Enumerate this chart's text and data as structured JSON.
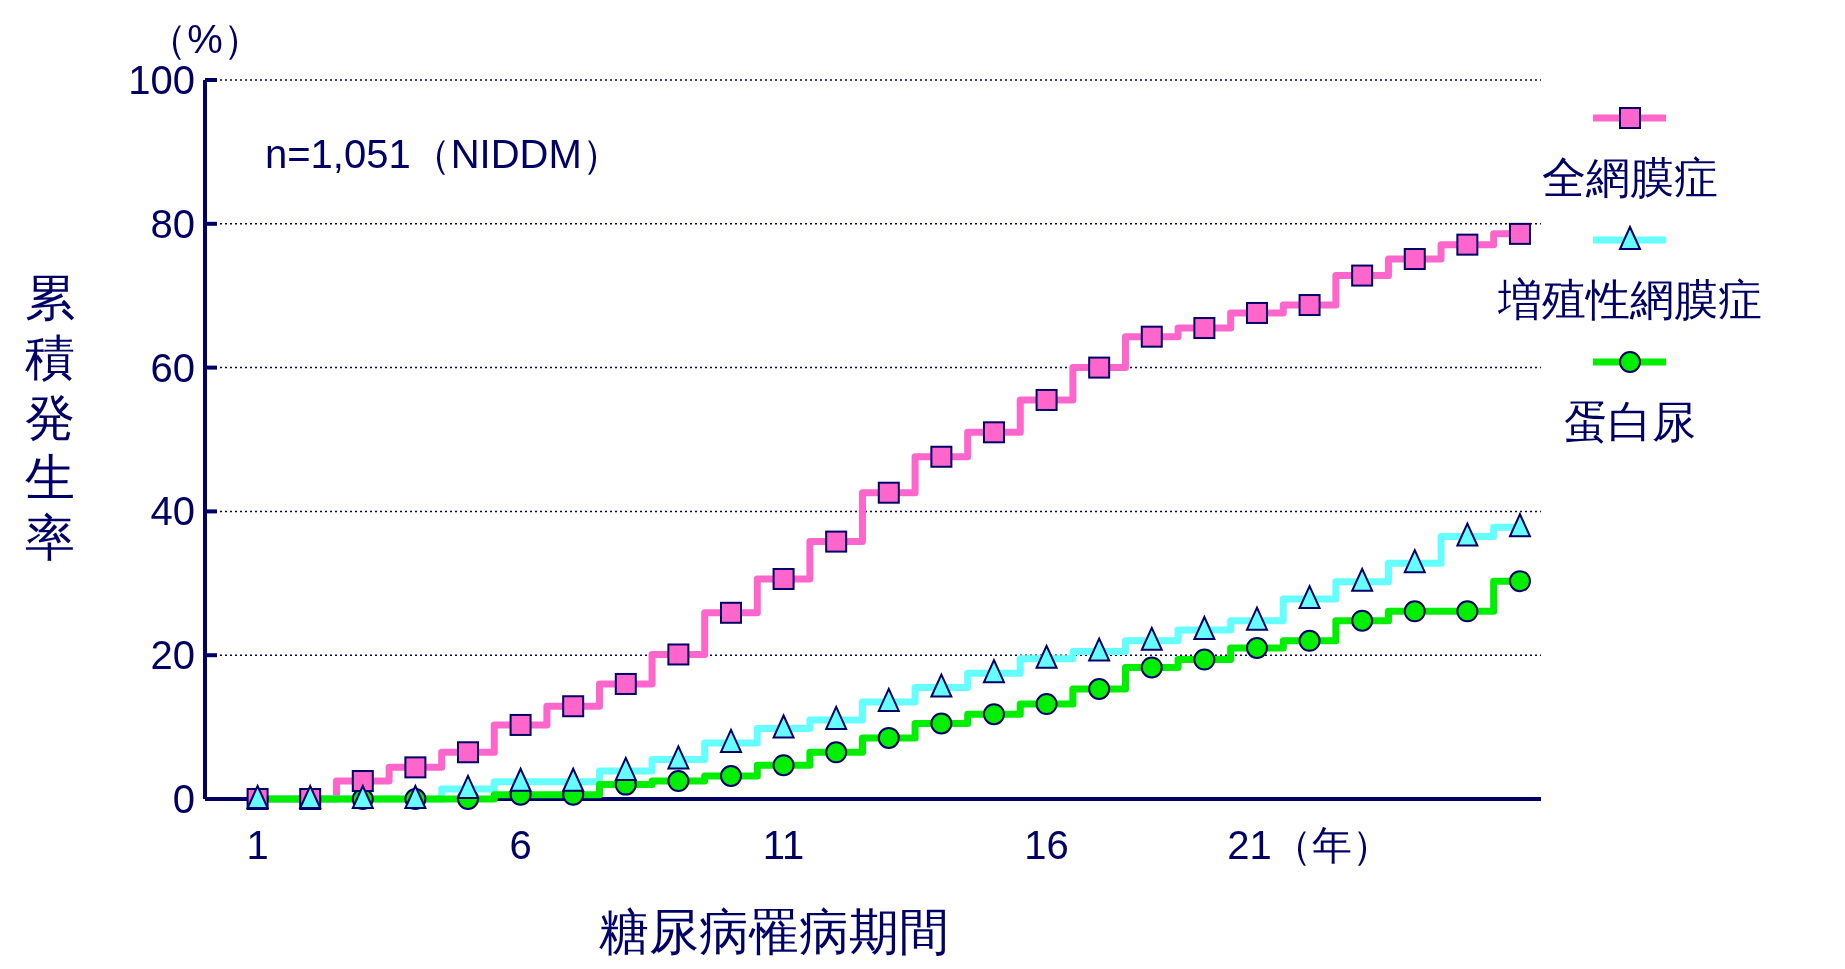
{
  "chart_data": {
    "type": "step",
    "xlabel": "糖尿病罹病期間",
    "ylabel": "累積発生率",
    "annotations": [
      "n=1,051（NIDDM）",
      "（%）"
    ],
    "x": [
      1,
      2,
      3,
      4,
      5,
      6,
      7,
      8,
      9,
      10,
      11,
      12,
      13,
      14,
      15,
      16,
      17,
      18,
      19,
      20,
      21,
      22,
      23,
      24,
      25
    ],
    "xlim": [
      0,
      25.4
    ],
    "xticks": [
      1,
      6,
      11,
      16,
      {
        "value": 21,
        "label": "21（年）"
      }
    ],
    "ylim": [
      0,
      100
    ],
    "yticks": [
      0,
      20,
      40,
      60,
      80,
      100
    ],
    "grid": "y",
    "legend": "top right",
    "line_style": "solid",
    "series": [
      {
        "name": "全網膜症",
        "color": "#ff66cc",
        "marker": "square",
        "values": [
          0,
          0,
          2.5,
          4.4,
          6.5,
          10.3,
          12.9,
          16,
          20.1,
          25.9,
          30.6,
          35.8,
          42.6,
          47.6,
          51,
          55.5,
          60,
          64.3,
          65.5,
          67.6,
          68.7,
          72.8,
          75.1,
          77.1,
          78.6
        ]
      },
      {
        "name": "増殖性網膜症",
        "color": "#66ffff",
        "marker": "triangle",
        "values": [
          0,
          0,
          0,
          0,
          1.4,
          2.4,
          2.4,
          3.9,
          5.5,
          7.8,
          9.8,
          11,
          13.5,
          15.5,
          17.5,
          19.5,
          20.5,
          22,
          23.5,
          24.8,
          27.8,
          30.2,
          32.8,
          36.5,
          37.8
        ]
      },
      {
        "name": "蛋白尿",
        "color": "#00ee00",
        "marker": "circle",
        "values": [
          0,
          0,
          0,
          0,
          0,
          0.6,
          0.6,
          2,
          2.5,
          3.2,
          4.7,
          6.5,
          8.5,
          10.5,
          11.8,
          13.2,
          15.3,
          18.3,
          19.4,
          21,
          22,
          24.8,
          26.1,
          26.1,
          30.3
        ]
      }
    ]
  }
}
